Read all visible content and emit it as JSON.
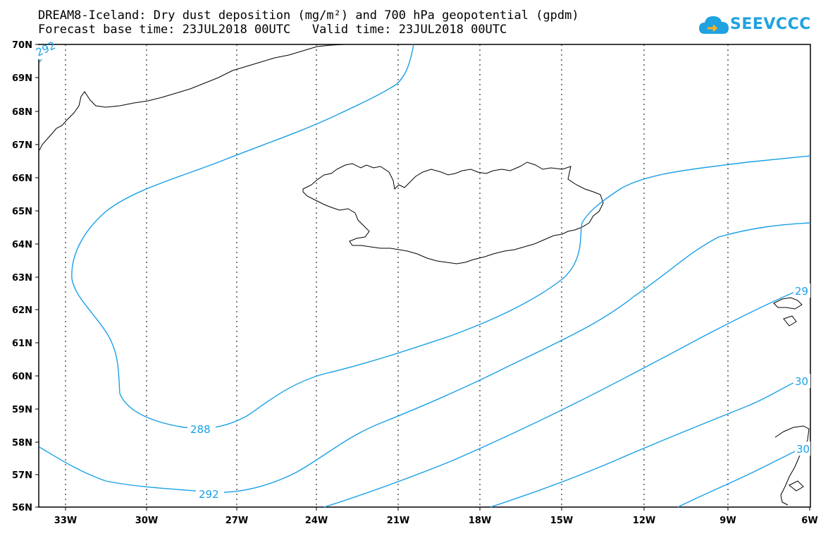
{
  "title_line1": "DREAM8-Iceland: Dry dust deposition (mg/m²) and 700 hPa geopotential (gpdm)",
  "title_line2": "Forecast base time: 23JUL2018 00UTC   Valid time: 23JUL2018 00UTC",
  "logo": {
    "text": "SEEVCCC",
    "icon": "cloud-icon",
    "color": "#1fa2e0"
  },
  "map": {
    "lat_labels": [
      "70N",
      "69N",
      "68N",
      "67N",
      "66N",
      "65N",
      "64N",
      "63N",
      "62N",
      "61N",
      "60N",
      "59N",
      "58N",
      "57N",
      "56N"
    ],
    "lon_labels": [
      "33W",
      "30W",
      "27W",
      "24W",
      "21W",
      "18W",
      "15W",
      "12W",
      "9W",
      "6W"
    ],
    "contour_color": "#1aa0e8",
    "contour_labels": [
      "292",
      "288",
      "292",
      "29",
      "30",
      "30"
    ]
  }
}
